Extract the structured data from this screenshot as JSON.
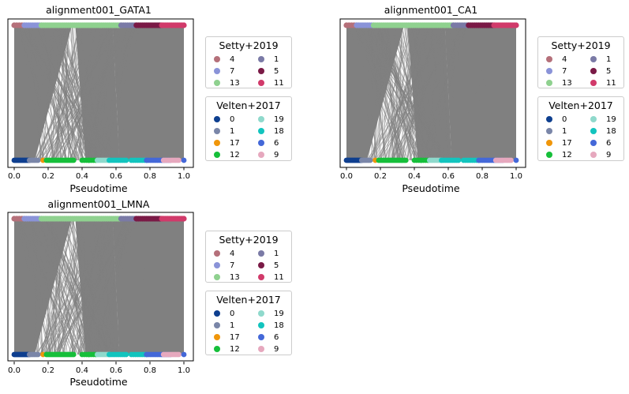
{
  "chart_data": [
    {
      "type": "scatter",
      "title": "alignment001_GATA1",
      "xlabel": "Pseudotime",
      "ylabel": "",
      "xlim": [
        0,
        1
      ],
      "xticks": [
        "0.0",
        "0.2",
        "0.4",
        "0.6",
        "0.8",
        "1.0"
      ]
    },
    {
      "type": "scatter",
      "title": "alignment001_CA1",
      "xlabel": "Pseudotime",
      "ylabel": "",
      "xlim": [
        0,
        1
      ],
      "xticks": [
        "0.0",
        "0.2",
        "0.4",
        "0.6",
        "0.8",
        "1.0"
      ]
    },
    {
      "type": "scatter",
      "title": "alignment001_LMNA",
      "xlabel": "Pseudotime",
      "ylabel": "",
      "xlim": [
        0,
        1
      ],
      "xticks": [
        "0.0",
        "0.2",
        "0.4",
        "0.6",
        "0.8",
        "1.0"
      ]
    }
  ],
  "legends": {
    "setty": {
      "title": "Setty+2019",
      "entries": [
        {
          "label": "4",
          "color": "#b5707a"
        },
        {
          "label": "7",
          "color": "#8a93d8"
        },
        {
          "label": "13",
          "color": "#8fd18f"
        },
        {
          "label": "1",
          "color": "#7a7aa6"
        },
        {
          "label": "5",
          "color": "#7a1a46"
        },
        {
          "label": "11",
          "color": "#d13a6a"
        }
      ]
    },
    "velten": {
      "title": "Velten+2017",
      "entries": [
        {
          "label": "0",
          "color": "#0e3f8f"
        },
        {
          "label": "1",
          "color": "#7a86a8"
        },
        {
          "label": "17",
          "color": "#f0960a"
        },
        {
          "label": "12",
          "color": "#16bf3a"
        },
        {
          "label": "19",
          "color": "#8fd9cc"
        },
        {
          "label": "18",
          "color": "#12c4be"
        },
        {
          "label": "6",
          "color": "#4468d8"
        },
        {
          "label": "9",
          "color": "#e6a8be"
        }
      ]
    }
  },
  "colors": {
    "connector": "#808080",
    "axes": "#000000"
  }
}
